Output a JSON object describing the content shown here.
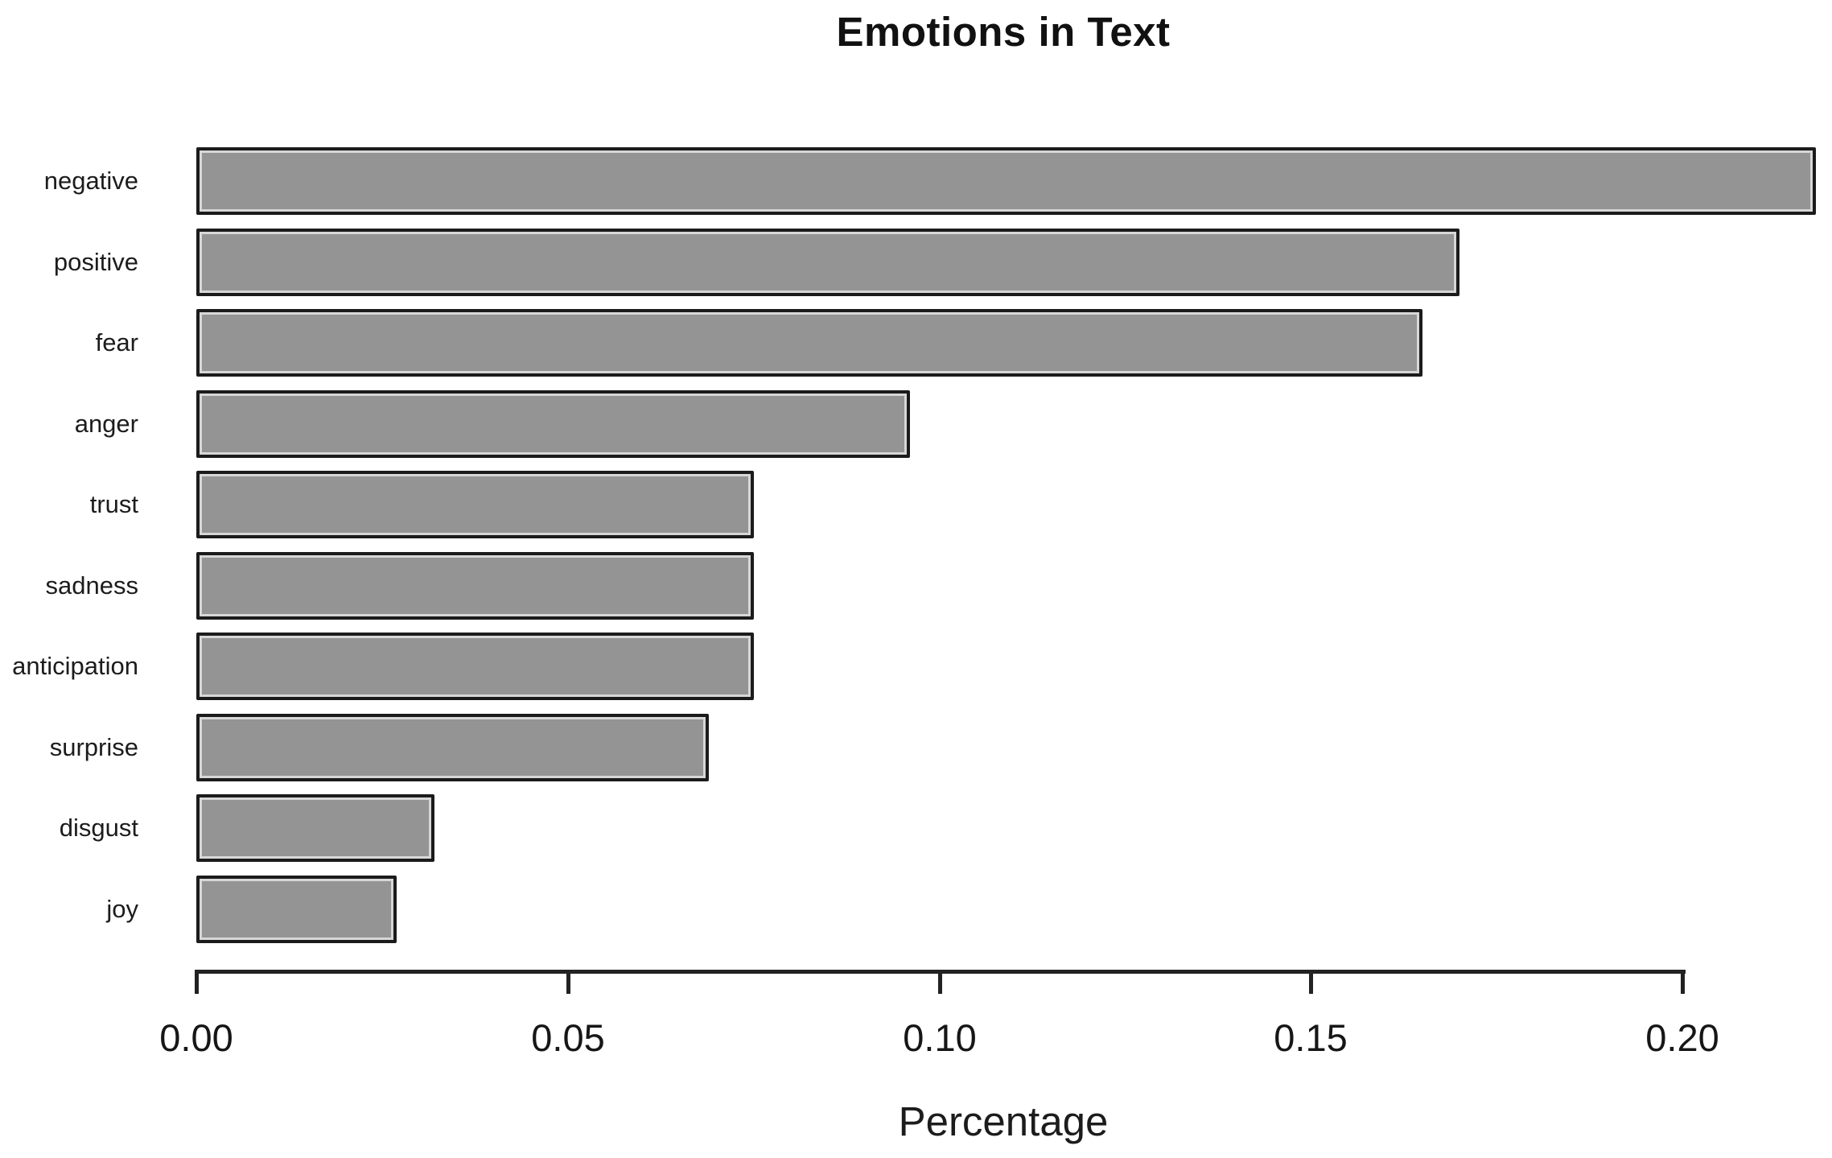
{
  "chart_data": {
    "type": "bar",
    "orientation": "horizontal",
    "title": "Emotions in Text",
    "xlabel": "Percentage",
    "ylabel": "",
    "categories": [
      "negative",
      "positive",
      "fear",
      "anger",
      "trust",
      "sadness",
      "anticipation",
      "surprise",
      "disgust",
      "joy"
    ],
    "values": [
      0.218,
      0.17,
      0.165,
      0.096,
      0.075,
      0.075,
      0.075,
      0.069,
      0.032,
      0.027
    ],
    "xlim": [
      0.0,
      0.2
    ],
    "xticks": [
      0.0,
      0.05,
      0.1,
      0.15,
      0.2
    ],
    "xtick_labels": [
      "0.00",
      "0.05",
      "0.10",
      "0.15",
      "0.20"
    ],
    "grid": false,
    "legend": null,
    "bar_fill_color": "#949494",
    "bar_border_color": "#1b1b1b",
    "text_color": "#1c1c1c",
    "background_color": "#ffffff"
  }
}
